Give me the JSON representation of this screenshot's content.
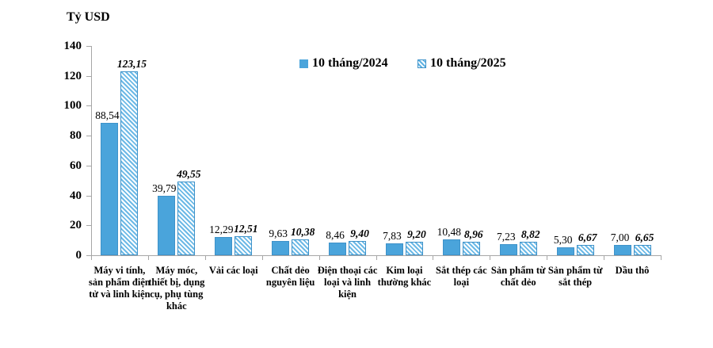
{
  "axis_title": "Tỷ USD",
  "colors": {
    "bar_solid": "#4aa4db",
    "bar_border": "#3e92c9",
    "bar_hatch_stripe": "#6cb9e6",
    "axis": "#a6a6a6",
    "text": "#000000"
  },
  "legend": {
    "items": [
      {
        "label": "10 tháng/2024",
        "swatch": "solid-blue-square"
      },
      {
        "label": "10 tháng/2025",
        "swatch": "hatched-blue-square"
      }
    ]
  },
  "chart_data": {
    "type": "bar",
    "title": "Tỷ USD",
    "xlabel": "",
    "ylabel": "Tỷ USD",
    "ylim": [
      0,
      140
    ],
    "yticks": [
      0,
      20,
      40,
      60,
      80,
      100,
      120,
      140
    ],
    "grid": false,
    "legend_position": "top-center",
    "categories": [
      "Máy vi tính, sản phẩm điện tử và linh kiện",
      "Máy móc, thiết bị, dụng cụ, phụ tùng khác",
      "Vải các loại",
      "Chất dẻo nguyên liệu",
      "Điện thoại các loại và linh kiện",
      "Kim loại thường khác",
      "Sắt thép các loại",
      "Sản phẩm từ chất dẻo",
      "Sản phẩm từ sắt thép",
      "Dầu thô"
    ],
    "series": [
      {
        "name": "10 tháng/2024",
        "values": [
          88.54,
          39.79,
          12.29,
          9.63,
          8.46,
          7.83,
          10.48,
          7.23,
          5.3,
          7.0
        ],
        "labels": [
          "88,54",
          "39,79",
          "12,29",
          "9,63",
          "8,46",
          "7,83",
          "10,48",
          "7,23",
          "5,30",
          "7,00"
        ]
      },
      {
        "name": "10 tháng/2025",
        "values": [
          123.15,
          49.55,
          12.51,
          10.38,
          9.4,
          9.2,
          8.96,
          8.82,
          6.67,
          6.65
        ],
        "labels": [
          "123,15",
          "49,55",
          "12,51",
          "10,38",
          "9,40",
          "9,20",
          "8,96",
          "8,82",
          "6,67",
          "6,65"
        ]
      }
    ]
  }
}
